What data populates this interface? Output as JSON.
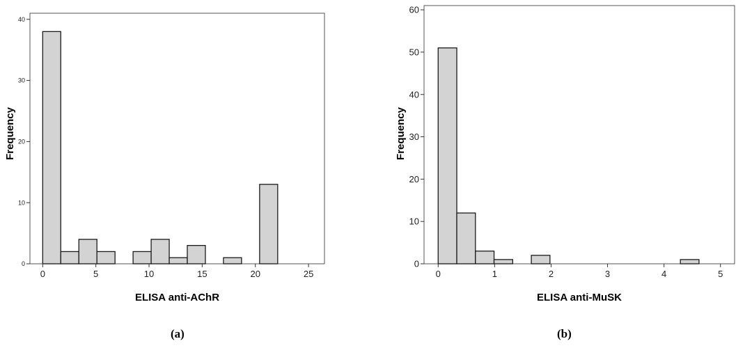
{
  "chart_data": [
    {
      "type": "bar",
      "panel_label": "(a)",
      "xlabel": "ELISA anti-AChR",
      "ylabel": "Frequency",
      "xlim": [
        -1.2,
        26.5
      ],
      "ylim": [
        0,
        41
      ],
      "xticks": [
        "0",
        "5",
        "10",
        "15",
        "20",
        "25"
      ],
      "yticks": [
        "0",
        "10",
        "20",
        "30",
        "40"
      ],
      "bin_width": 1.7,
      "bins": [
        {
          "x0": 0.0,
          "value": 38
        },
        {
          "x0": 1.7,
          "value": 2
        },
        {
          "x0": 3.4,
          "value": 4
        },
        {
          "x0": 5.1,
          "value": 2
        },
        {
          "x0": 8.5,
          "value": 2
        },
        {
          "x0": 10.2,
          "value": 4
        },
        {
          "x0": 11.9,
          "value": 1
        },
        {
          "x0": 13.6,
          "value": 3
        },
        {
          "x0": 17.0,
          "value": 1
        },
        {
          "x0": 20.4,
          "value": 13
        }
      ]
    },
    {
      "type": "bar",
      "panel_label": "(b)",
      "xlabel": "ELISA anti-MuSK",
      "ylabel": "Frequency",
      "xlim": [
        -0.25,
        5.25
      ],
      "ylim": [
        0,
        61
      ],
      "xticks": [
        "0",
        "1",
        "2",
        "3",
        "4",
        "5"
      ],
      "yticks": [
        "0",
        "10",
        "20",
        "30",
        "40",
        "50",
        "60"
      ],
      "bin_width": 0.33,
      "bins": [
        {
          "x0": 0.0,
          "value": 51
        },
        {
          "x0": 0.33,
          "value": 12
        },
        {
          "x0": 0.66,
          "value": 3
        },
        {
          "x0": 0.99,
          "value": 1
        },
        {
          "x0": 1.65,
          "value": 2
        },
        {
          "x0": 4.29,
          "value": 1
        }
      ]
    }
  ]
}
